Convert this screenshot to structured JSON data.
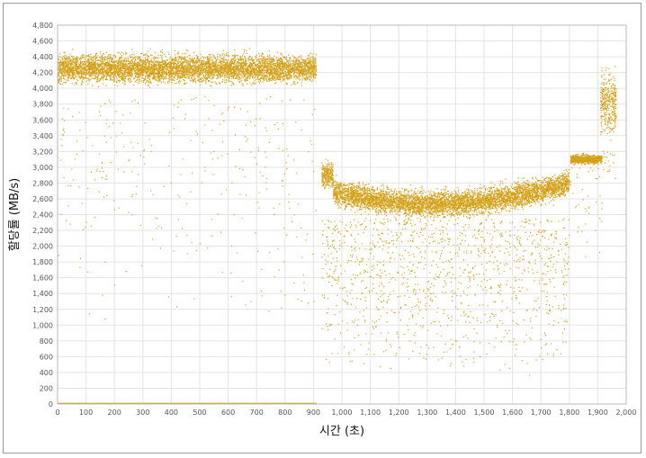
{
  "chart_data": {
    "type": "scatter",
    "xlabel": "시간 (초)",
    "ylabel": "할당률 (MB/s)",
    "xlim": [
      0,
      2000
    ],
    "ylim": [
      0,
      4800
    ],
    "xticks": [
      0,
      100,
      200,
      300,
      400,
      500,
      600,
      700,
      800,
      900,
      1000,
      1100,
      1200,
      1300,
      1400,
      1500,
      1600,
      1700,
      1800,
      1900,
      2000
    ],
    "xtick_labels": [
      "0",
      "100",
      "200",
      "300",
      "400",
      "500",
      "600",
      "700",
      "800",
      "900",
      "1,000",
      "1,100",
      "1,200",
      "1,300",
      "1,400",
      "1,500",
      "1,600",
      "1,700",
      "1,800",
      "1,900",
      "2,000"
    ],
    "yticks": [
      0,
      200,
      400,
      600,
      800,
      1000,
      1200,
      1400,
      1600,
      1800,
      2000,
      2200,
      2400,
      2600,
      2800,
      3000,
      3200,
      3400,
      3600,
      3800,
      4000,
      4200,
      4400,
      4600,
      4800
    ],
    "ytick_labels": [
      "0",
      "200",
      "400",
      "600",
      "800",
      "1,000",
      "1,200",
      "1,400",
      "1,600",
      "1,800",
      "2,000",
      "2,200",
      "2,400",
      "2,600",
      "2,800",
      "3,000",
      "3,200",
      "3,400",
      "3,600",
      "3,800",
      "4,000",
      "4,200",
      "4,400",
      "4,600",
      "4,800"
    ],
    "grid": true,
    "legend": "none",
    "marker_color": "#d4a017",
    "segments": [
      {
        "x_range": [
          0,
          910
        ],
        "dense_band": [
          3900,
          4500
        ],
        "center": 4250,
        "outliers_min": 1000
      },
      {
        "x_range": [
          930,
          1800
        ],
        "dense_band": [
          2350,
          2900
        ],
        "center": 2600,
        "outliers_min": 350
      },
      {
        "x_range": [
          1805,
          1915
        ],
        "dense_band": [
          3000,
          3200
        ],
        "center": 3100,
        "outliers_min": 1800
      },
      {
        "x_range": [
          1910,
          1965
        ],
        "dense_band": [
          3200,
          4400
        ],
        "center": 3800,
        "outliers_min": 2800
      }
    ],
    "baseline": {
      "x_range": [
        0,
        910
      ],
      "value": 0
    }
  }
}
